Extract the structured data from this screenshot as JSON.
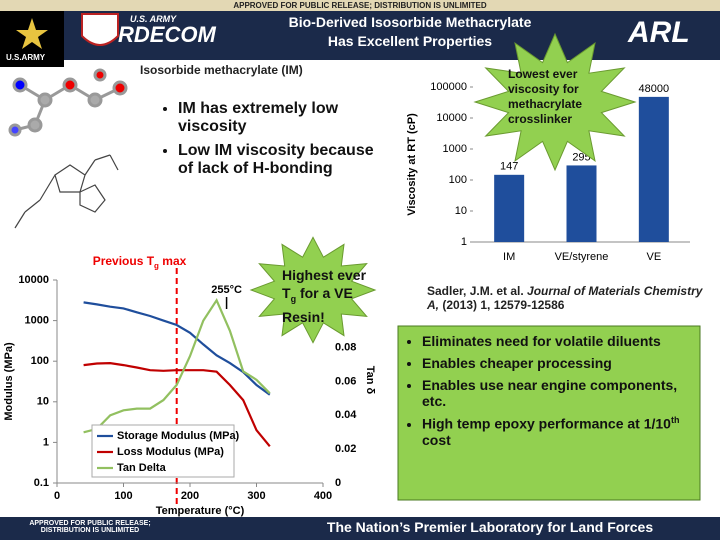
{
  "slide": {
    "release_top": "APPROVED FOR PUBLIC RELEASE; DISTRIBUTION IS UNLIMITED",
    "title": [
      "Bio-Derived Isosorbide Methacrylate",
      "Has Excellent Properties"
    ],
    "logos": {
      "army": "U.S.ARMY",
      "rdecom_top": "U.S. ARMY",
      "rdecom": "RDECOM",
      "arl": "ARL"
    },
    "molecule_label": "Isosorbide methacrylate (IM)",
    "bullets": [
      "IM has extremely low viscosity",
      "Low IM viscosity because of lack of H-bonding"
    ],
    "star1": "Lowest ever viscosity for methacrylate crosslinker",
    "star2": {
      "before": "Highest ever T",
      "sub": "g",
      "after": " for a VE Resin!"
    },
    "reference": {
      "authors": "Sadler, J.M. et al. ",
      "journal": "Journal of Materials Chemistry A,",
      "details": " (2013) 1, 12579-12586"
    },
    "benefits": [
      "Eliminates need for volatile diluents",
      "Enables cheaper processing",
      "Enables use near engine components, etc."
    ],
    "benefit_last": {
      "before": "High temp epoxy performance at 1/10",
      "sup": "th",
      "after": " cost"
    },
    "release_bottom": "APPROVED FOR PUBLIC RELEASE; DISTRIBUTION IS UNLIMITED",
    "footer": "The Nation’s Premier Laboratory for Land Forces"
  },
  "chart_data": [
    {
      "type": "bar",
      "log_y": true,
      "y_label": "Viscosity at RT (cP)",
      "categories": [
        "IM",
        "VE/styrene",
        "VE"
      ],
      "values": [
        147,
        295,
        48000
      ],
      "color": "#1f4e9c",
      "ylim": [
        1,
        100000
      ],
      "yticks": [
        1,
        10,
        100,
        1000,
        10000,
        100000
      ]
    },
    {
      "type": "line",
      "log_y": true,
      "x_label": "Temperature (°C)",
      "y_label": "Modulus (MPa)",
      "y2_label": "Tan δ",
      "x": [
        40,
        60,
        80,
        100,
        120,
        140,
        160,
        180,
        200,
        220,
        240,
        260,
        280,
        300,
        320
      ],
      "series": [
        {
          "name": "Storage Modulus (MPa)",
          "color": "#1f4e9c",
          "values": [
            2800,
            2500,
            2200,
            2000,
            1600,
            1300,
            1000,
            780,
            500,
            260,
            140,
            90,
            54,
            26,
            15
          ]
        },
        {
          "name": "Loss Modulus (MPa)",
          "color": "#c00000",
          "values": [
            80,
            88,
            90,
            80,
            70,
            60,
            58,
            60,
            60,
            60,
            55,
            26,
            11,
            2,
            0.8
          ]
        },
        {
          "name": "Tan Delta",
          "color": "#92c060",
          "axis": "y2",
          "values": [
            0.03,
            0.032,
            0.04,
            0.043,
            0.044,
            0.044,
            0.049,
            0.058,
            0.075,
            0.096,
            0.108,
            0.09,
            0.066,
            0.061,
            0.053
          ]
        }
      ],
      "xlim": [
        0,
        400
      ],
      "xticks": [
        0,
        100,
        200,
        300,
        400
      ],
      "ylim": [
        0.1,
        10000
      ],
      "yticks": [
        0.1,
        1,
        10,
        100,
        1000,
        10000
      ],
      "y2lim": [
        0,
        0.12
      ],
      "y2ticks": [
        0,
        0.02,
        0.04,
        0.06,
        0.08
      ],
      "previous_tg": {
        "before": "Previous T",
        "sub": "g",
        "after": " max",
        "x": 180
      },
      "peak": {
        "value": 255,
        "label": "255°C"
      }
    }
  ]
}
